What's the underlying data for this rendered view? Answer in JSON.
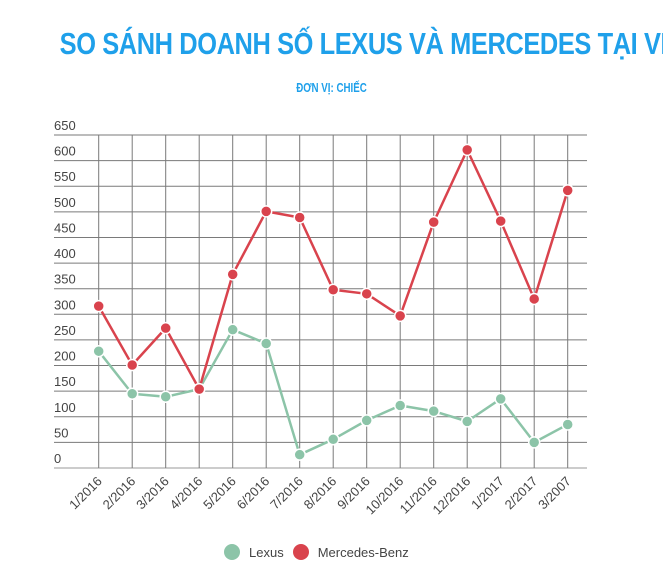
{
  "header": {
    "title": "SO SÁNH DOANH SỐ LEXUS VÀ MERCEDES TẠI VIỆT NAM",
    "subtitle": "ĐƠN VỊ: CHIẾC"
  },
  "colors": {
    "title": "#1fa0ea",
    "lexus": "#8cc4a8",
    "mercedes": "#d9434d",
    "grid": "#777777"
  },
  "legend": {
    "items": [
      {
        "label": "Lexus",
        "color": "#8cc4a8"
      },
      {
        "label": "Mercedes-Benz",
        "color": "#d9434d"
      }
    ]
  },
  "chart_data": {
    "type": "line",
    "title": "SO SÁNH DOANH SỐ LEXUS VÀ MERCEDES TẠI VIỆT NAM",
    "subtitle": "ĐƠN VỊ: CHIẾC",
    "xlabel": "",
    "ylabel": "",
    "categories": [
      "1/2016",
      "2/2016",
      "3/2016",
      "4/2016",
      "5/2016",
      "6/2016",
      "7/2016",
      "8/2016",
      "9/2016",
      "10/2016",
      "11/2016",
      "12/2016",
      "1/2017",
      "2/2017",
      "3/2007"
    ],
    "series": [
      {
        "name": "Lexus",
        "color": "#8cc4a8",
        "values": [
          228,
          145,
          139,
          154,
          270,
          243,
          26,
          56,
          93,
          122,
          111,
          91,
          135,
          50,
          85
        ]
      },
      {
        "name": "Mercedes-Benz",
        "color": "#d9434d",
        "values": [
          316,
          201,
          273,
          154,
          378,
          501,
          489,
          348,
          340,
          297,
          480,
          621,
          482,
          330,
          542
        ]
      }
    ],
    "yticks": [
      0,
      50,
      100,
      150,
      200,
      250,
      300,
      350,
      400,
      450,
      500,
      550,
      600,
      650
    ],
    "ylim": [
      0,
      650
    ],
    "grid": true,
    "legend_position": "bottom"
  }
}
